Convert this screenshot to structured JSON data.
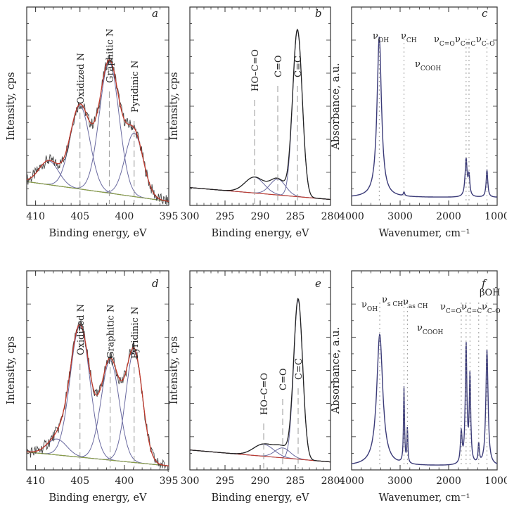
{
  "colors": {
    "axis": "#333333",
    "raw": "#444444",
    "fit": "#c0392b",
    "component": "#6a6aa0",
    "background": "#8aa040",
    "ir": "#3b3b78",
    "guide": "#9a9a9a"
  },
  "chart_data": [
    {
      "panel": "a",
      "type": "line",
      "subtype": "xps-deconvolution",
      "xlabel": "Binding energy, eV",
      "ylabel": "Intensity, cps",
      "xlim": [
        411,
        395
      ],
      "reverse_x": true,
      "ylim": [
        0,
        1
      ],
      "xticks": [
        410,
        405,
        400,
        395
      ],
      "peak_labels": [
        "Oxidized N",
        "Graphitic N",
        "Pyridinic N"
      ],
      "series": [
        {
          "role": "raw",
          "x": [
            411,
            410,
            409,
            408,
            407,
            406,
            405,
            404,
            403,
            402.5,
            402,
            401.5,
            401,
            400.5,
            400,
            399.5,
            399,
            398.5,
            398,
            397,
            396,
            395
          ],
          "y": [
            0.22,
            0.24,
            0.27,
            0.32,
            0.44,
            0.55,
            0.5,
            0.51,
            0.6,
            0.7,
            0.76,
            0.78,
            0.74,
            0.66,
            0.56,
            0.5,
            0.45,
            0.4,
            0.34,
            0.24,
            0.14,
            0.09
          ]
        },
        {
          "role": "fit",
          "x": [
            411,
            410,
            409,
            408,
            407,
            406,
            405,
            404,
            403,
            402.5,
            402,
            401.5,
            401,
            400.5,
            400,
            399.5,
            399,
            398.5,
            398,
            397,
            396,
            395
          ],
          "y": [
            0.22,
            0.25,
            0.28,
            0.33,
            0.43,
            0.53,
            0.51,
            0.52,
            0.6,
            0.69,
            0.75,
            0.77,
            0.73,
            0.65,
            0.56,
            0.5,
            0.45,
            0.4,
            0.34,
            0.24,
            0.15,
            0.1
          ]
        },
        {
          "role": "baseline",
          "x": [
            411,
            395
          ],
          "y": [
            0.12,
            0.02
          ]
        },
        {
          "role": "component",
          "name": "Oxidized N",
          "center": 405.0,
          "height": 0.42,
          "fwhm": 2.6
        },
        {
          "role": "component",
          "name": "Graphitic N",
          "center": 401.7,
          "height": 0.66,
          "fwhm": 2.6
        },
        {
          "role": "component",
          "name": "Pyridinic N",
          "center": 398.9,
          "height": 0.32,
          "fwhm": 2.4
        },
        {
          "role": "component",
          "name": "",
          "center": 408.5,
          "height": 0.12,
          "fwhm": 2.6
        }
      ]
    },
    {
      "panel": "b",
      "type": "line",
      "subtype": "xps-deconvolution",
      "xlabel": "Binding energy, eV",
      "ylabel": "Intensity, cps",
      "xlim": [
        300,
        280
      ],
      "reverse_x": true,
      "ylim": [
        0,
        1
      ],
      "xticks": [
        300,
        295,
        290,
        285,
        280
      ],
      "peak_labels": [
        "HO–C=O",
        "C=O",
        "C=C"
      ],
      "series": [
        {
          "role": "baseline",
          "x": [
            300,
            280
          ],
          "y": [
            0.09,
            0.03
          ]
        },
        {
          "role": "component",
          "name": "HO–C=O",
          "center": 290.8,
          "height": 0.08,
          "fwhm": 3.2
        },
        {
          "role": "component",
          "name": "C=O",
          "center": 287.5,
          "height": 0.08,
          "fwhm": 2.6
        },
        {
          "role": "component",
          "name": "C=C",
          "center": 284.7,
          "height": 0.84,
          "fwhm": 1.6
        }
      ]
    },
    {
      "panel": "c",
      "type": "line",
      "subtype": "ft-ir",
      "xlabel": "Wavenumer, cm⁻¹",
      "ylabel": "Absorbance, a.u.",
      "xlim": [
        4000,
        1000
      ],
      "reverse_x": true,
      "ylim": [
        0,
        1
      ],
      "xticks": [
        4000,
        3000,
        2000,
        1000
      ],
      "band_labels": [
        {
          "label": "ν",
          "sub": "OH"
        },
        {
          "label": "ν",
          "sub": "CH"
        },
        {
          "label": "ν",
          "sub": "COOH"
        },
        {
          "label": "ν",
          "sub": "C=O"
        },
        {
          "label": "ν",
          "sub": "C=C"
        },
        {
          "label": "ν",
          "sub": "C–O"
        }
      ],
      "bands": [
        {
          "center": 3430,
          "height": 0.81,
          "width": 110
        },
        {
          "center": 2920,
          "height": 0.02,
          "width": 30
        },
        {
          "center": 1640,
          "height": 0.19,
          "width": 50
        },
        {
          "center": 1580,
          "height": 0.1,
          "width": 40
        },
        {
          "center": 1210,
          "height": 0.14,
          "width": 40
        }
      ],
      "baseline": 0.04
    },
    {
      "panel": "d",
      "type": "line",
      "subtype": "xps-deconvolution",
      "xlabel": "Binding energy, eV",
      "ylabel": "Intensity, cps",
      "xlim": [
        411,
        395
      ],
      "reverse_x": true,
      "ylim": [
        0,
        1
      ],
      "xticks": [
        410,
        405,
        400,
        395
      ],
      "peak_labels": [
        "Oxidized N",
        "Graphitic N",
        "Pyridinic N"
      ],
      "series": [
        {
          "role": "baseline",
          "x": [
            411,
            395
          ],
          "y": [
            0.09,
            0.02
          ]
        },
        {
          "role": "component",
          "name": "",
          "center": 407.6,
          "height": 0.08,
          "fwhm": 2.6
        },
        {
          "role": "component",
          "name": "Oxidized N",
          "center": 405.0,
          "height": 0.66,
          "fwhm": 2.6
        },
        {
          "role": "component",
          "name": "Graphitic N",
          "center": 401.6,
          "height": 0.5,
          "fwhm": 2.4
        },
        {
          "role": "component",
          "name": "Pyridinic N",
          "center": 398.9,
          "height": 0.56,
          "fwhm": 2.2
        }
      ]
    },
    {
      "panel": "e",
      "type": "line",
      "subtype": "xps-deconvolution",
      "xlabel": "Binding energy, eV",
      "ylabel": "Intensity, cps",
      "xlim": [
        300,
        280
      ],
      "reverse_x": true,
      "ylim": [
        0,
        1
      ],
      "xticks": [
        300,
        295,
        290,
        285,
        280
      ],
      "peak_labels": [
        "HO–C=O",
        "C=O",
        "C=C"
      ],
      "series": [
        {
          "role": "baseline",
          "x": [
            300,
            280
          ],
          "y": [
            0.1,
            0.04
          ]
        },
        {
          "role": "component",
          "name": "HO–C=O",
          "center": 289.5,
          "height": 0.06,
          "fwhm": 3.4
        },
        {
          "role": "component",
          "name": "C=O",
          "center": 286.8,
          "height": 0.05,
          "fwhm": 2.6
        },
        {
          "role": "component",
          "name": "C=C",
          "center": 284.6,
          "height": 0.8,
          "fwhm": 1.5
        }
      ]
    },
    {
      "panel": "f",
      "type": "line",
      "subtype": "ft-ir",
      "xlabel": "Wavenumer, cm⁻¹",
      "ylabel": "Absorbance, a.u.",
      "xlim": [
        4000,
        1000
      ],
      "reverse_x": true,
      "ylim": [
        0,
        1
      ],
      "xticks": [
        4000,
        3000,
        2000,
        1000
      ],
      "band_labels": [
        {
          "label": "ν",
          "sub": "OH"
        },
        {
          "label": "ν",
          "sub": "s CH"
        },
        {
          "label": "ν",
          "sub": "as CH"
        },
        {
          "label": "ν",
          "sub": "COOH"
        },
        {
          "label": "ν",
          "sub": "C=O"
        },
        {
          "label": "ν",
          "sub": "C=C"
        },
        {
          "label": "βOH",
          "sub": ""
        },
        {
          "label": "ν",
          "sub": "C–O"
        }
      ],
      "bands": [
        {
          "center": 3420,
          "height": 0.66,
          "width": 150
        },
        {
          "center": 2920,
          "height": 0.38,
          "width": 25
        },
        {
          "center": 2850,
          "height": 0.18,
          "width": 22
        },
        {
          "center": 1740,
          "height": 0.16,
          "width": 40
        },
        {
          "center": 1640,
          "height": 0.6,
          "width": 40
        },
        {
          "center": 1560,
          "height": 0.44,
          "width": 35
        },
        {
          "center": 1380,
          "height": 0.1,
          "width": 30
        },
        {
          "center": 1210,
          "height": 0.58,
          "width": 55
        }
      ],
      "baseline": 0.02
    }
  ]
}
